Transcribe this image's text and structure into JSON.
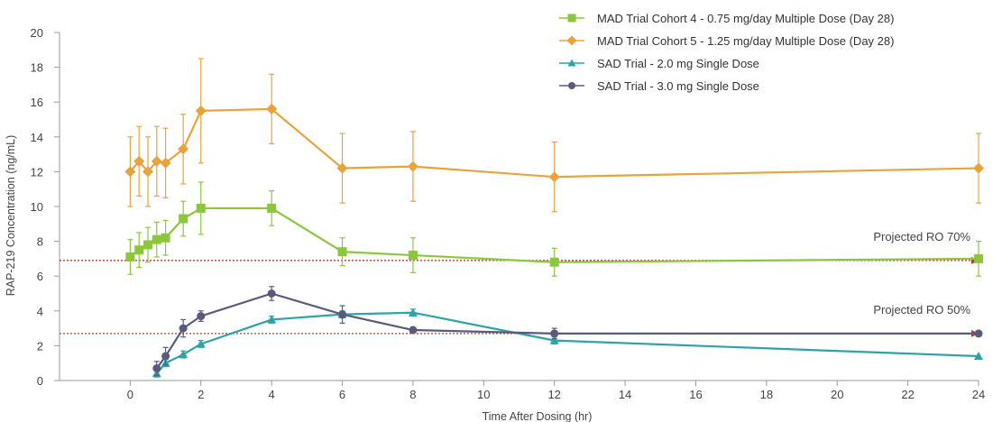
{
  "chart_data": {
    "type": "line",
    "title": "",
    "xlabel": "Time After Dosing (hr)",
    "ylabel": "RAP-219 Concentration (ng/mL)",
    "xlim": [
      -2,
      24
    ],
    "ylim": [
      0,
      20
    ],
    "xticks": [
      0,
      2,
      4,
      6,
      8,
      10,
      12,
      14,
      16,
      18,
      20,
      22,
      24
    ],
    "yticks": [
      0,
      2,
      4,
      6,
      8,
      10,
      12,
      14,
      16,
      18,
      20
    ],
    "grid": false,
    "legend_position": "top-right",
    "series": [
      {
        "name": "MAD Trial Cohort 4 - 0.75 mg/day Multiple Dose (Day 28)",
        "color": "#8cc63f",
        "marker": "square",
        "x": [
          0,
          0.25,
          0.5,
          0.75,
          1,
          1.5,
          2,
          4,
          6,
          8,
          12,
          24
        ],
        "y": [
          7.1,
          7.5,
          7.8,
          8.1,
          8.2,
          9.3,
          9.9,
          9.9,
          7.4,
          7.2,
          6.8,
          7.0
        ],
        "err": [
          1.0,
          1.0,
          1.0,
          1.0,
          1.0,
          1.0,
          1.5,
          1.0,
          0.8,
          1.0,
          0.8,
          1.0
        ]
      },
      {
        "name": "MAD Trial Cohort 5 - 1.25 mg/day Multiple Dose (Day 28)",
        "color": "#e8a33d",
        "marker": "diamond",
        "x": [
          0,
          0.25,
          0.5,
          0.75,
          1,
          1.5,
          2,
          4,
          6,
          8,
          12,
          24
        ],
        "y": [
          12.0,
          12.6,
          12.0,
          12.6,
          12.5,
          13.3,
          15.5,
          15.6,
          12.2,
          12.3,
          11.7,
          12.2
        ],
        "err": [
          2.0,
          2.0,
          2.0,
          2.0,
          2.0,
          2.0,
          3.0,
          2.0,
          2.0,
          2.0,
          2.0,
          2.0
        ]
      },
      {
        "name": "SAD Trial - 2.0 mg Single Dose",
        "color": "#2ea3a5",
        "marker": "triangle",
        "x": [
          0.75,
          1,
          1.5,
          2,
          4,
          6,
          8,
          12,
          24
        ],
        "y": [
          0.4,
          1.0,
          1.5,
          2.1,
          3.5,
          3.8,
          3.9,
          2.3,
          1.4
        ],
        "err": [
          0.2,
          0.2,
          0.2,
          0.2,
          0.2,
          0.2,
          0.2,
          0.2,
          0
        ]
      },
      {
        "name": "SAD Trial - 3.0 mg Single Dose",
        "color": "#5a5a7a",
        "marker": "circle",
        "x": [
          0.75,
          1,
          1.5,
          2,
          4,
          6,
          8,
          12,
          24
        ],
        "y": [
          0.7,
          1.4,
          3.0,
          3.7,
          5.0,
          3.8,
          2.9,
          2.7,
          2.7
        ],
        "err": [
          0.4,
          0.5,
          0.5,
          0.3,
          0.4,
          0.5,
          0.1,
          0.3,
          0
        ]
      }
    ],
    "reference_lines": [
      {
        "label": "Projected RO 70%",
        "y": 6.9,
        "color": "#c0392b"
      },
      {
        "label": "Projected RO 50%",
        "y": 2.7,
        "color": "#c0392b"
      }
    ]
  }
}
